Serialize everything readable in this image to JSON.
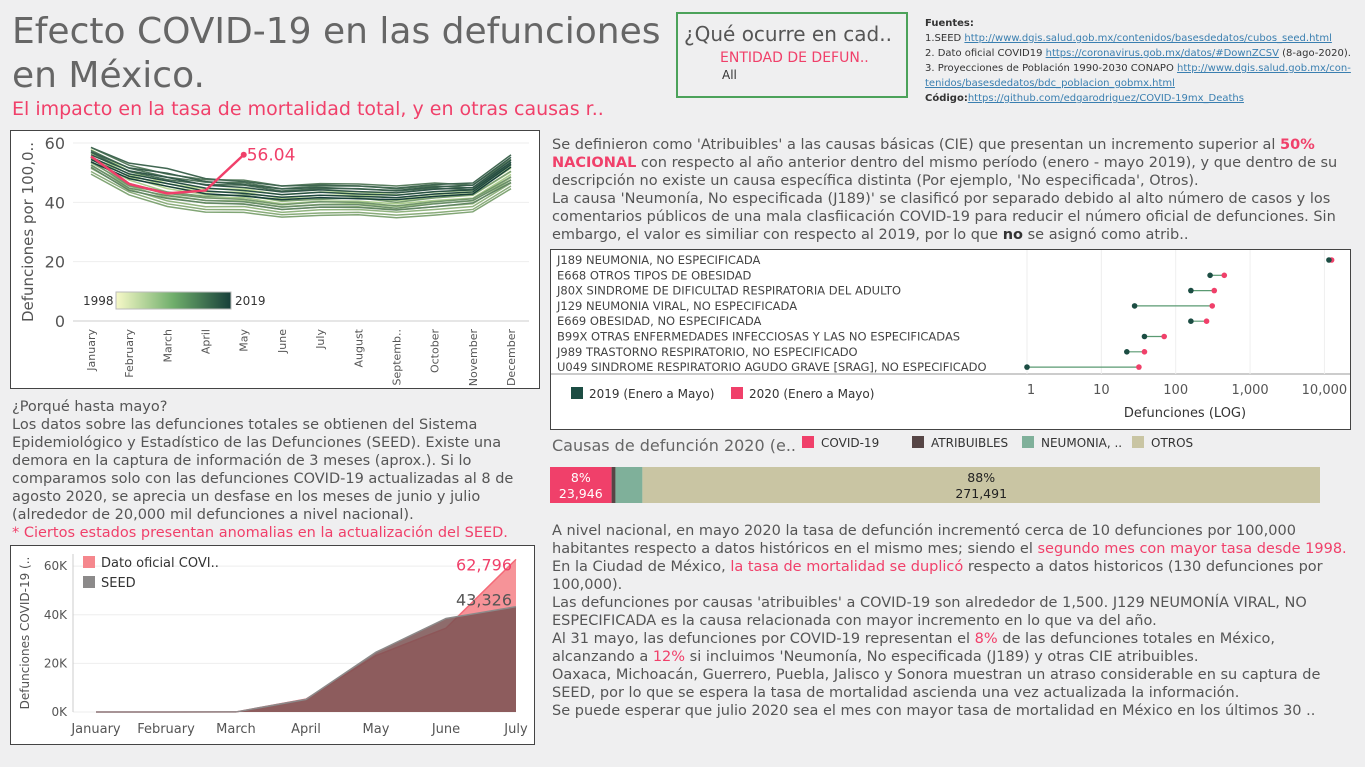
{
  "header": {
    "title": "Efecto COVID-19 en las defunciones en México.",
    "subtitle": "El impacto en la tasa de mortalidad total, y en otras causas r.."
  },
  "filter": {
    "title": "¿Qué ocurre en cad..",
    "label": "ENTIDAD DE DEFUN..",
    "value": "All"
  },
  "sources": {
    "heading": "Fuentes:",
    "s1_prefix": "1.SEED ",
    "s1_link": "http://www.dgis.salud.gob.mx/contenidos/basesdedatos/cubos_seed.html",
    "s2_prefix": "2. Dato oficial COVID19 ",
    "s2_link": "https://coronavirus.gob.mx/datos/#DownZCSV",
    "s2_suffix": " (8-ago-2020).",
    "s3_prefix": "3. Proyecciones de Población 1990-2030 CONAPO ",
    "s3_link_a": "http://www.dgis.salud.gob.mx/con-",
    "s3_link_b": "tenidos/basesdedatos/bdc_poblacion_gobmx.html",
    "code_label": "Código:",
    "code_link": "https://github.com/edgarodriguez/COVID-19mx_Deaths"
  },
  "intro": {
    "p1a": "Se definieron como 'Atribuibles' a las causas básicas (CIE) que presentan un incremento superior al ",
    "p1b": "50% NACIONAL",
    "p1c": " con respecto al año anterior dentro del mismo período (enero - mayo 2019), y que dentro de su descripción no existe un causa específica distinta (Por ejemplo, 'No especificada', Otros).",
    "p2a": "La causa 'Neumonía, No especificada (J189)' se clasificó por separado debido al alto número de casos y los comentarios públicos de una mala clasfiicación COVID-19 para reducir el número oficial de defunciones. Sin embargo, el valor es similiar con respecto al 2019, por lo que ",
    "p2b": "no",
    "p2c": " se asignó como atrib.."
  },
  "why": {
    "heading": "¿Porqué hasta mayo?",
    "body": "Los datos sobre las defunciones totales se obtienen del Sistema Epidemiológico y Estadístico de las Defunciones (SEED). Existe una demora en la captura de información de 3 meses (aprox.). Si lo comparamos solo con las defunciones COVID-19 actualizadas al 8 de agosto 2020, se aprecia un desfase en los meses de junio y julio (alrededor de 20,000 mil defunciones a nivel nacional).",
    "note": "* Ciertos estados presentan anomalias en la actualización del SEED."
  },
  "conclusions": {
    "c1a": "A nivel nacional, en mayo 2020 la tasa de defunción incrementó cerca de 10 defunciones por 100,000 habitantes respecto a datos históricos en el mismo mes; siendo el ",
    "c1b": "segundo mes con mayor tasa desde 1998.",
    "c2a": "En la Ciudad de México, ",
    "c2b": "la tasa de mortalidad se duplicó",
    "c2c": " respecto a datos historicos (130 defunciones por 100,000).",
    "c3": "Las defunciones por causas 'atribuibles' a COVID-19 son alrededor de 1,500. J129 NEUMONÍA VIRAL, NO ESPECIFICADA es la causa relacionada con mayor incremento en lo que va del año.",
    "c4a": "Al 31 mayo, las defunciones por COVID-19 representan el ",
    "c4b": "8%",
    "c4c": " de las defunciones totales en México, alcanzando  a ",
    "c4d": "12%",
    "c4e": " si incluimos 'Neumonía, No especificada (J189) y otras CIE atribuibles.",
    "c5": "Oaxaca, Michoacán, Guerrero, Puebla, Jalisco y Sonora muestran un atraso considerable en su captura de SEED, por lo que se espera la tasa de mortalidad ascienda una vez actualizada la información.",
    "c6": "Se puede esperar que julio 2020 sea el mes con mayor tasa de mortalidad en México en los últimos 30 .."
  },
  "chart_data": [
    {
      "type": "line",
      "ylabel": "Defunciones por 100,0..",
      "ylim": [
        0,
        60
      ],
      "yticks": [
        "0",
        "20",
        "40",
        "60"
      ],
      "categories": [
        "January",
        "February",
        "March",
        "April",
        "May",
        "June",
        "July",
        "August",
        "Septemb..",
        "October",
        "November",
        "December"
      ],
      "legend": {
        "min_label": "1998",
        "max_label": "2019",
        "low_color": "#f7f9c8",
        "high_color": "#173f3a"
      },
      "highlight": {
        "name": "2020",
        "color": "#f0406a",
        "values": [
          55.5,
          46.2,
          43,
          44,
          56.04
        ],
        "label": "56.04"
      },
      "historical_series": [
        [
          57.8,
          50.5,
          46.3,
          44.5,
          44.5,
          42.5,
          43.5,
          43.5,
          42.5,
          43.5,
          44,
          52.2
        ],
        [
          56.5,
          49.4,
          45.3,
          43.5,
          43.5,
          41.3,
          42.4,
          42.5,
          41.5,
          42.6,
          43.3,
          51.5
        ],
        [
          55.5,
          48.5,
          44.6,
          42.6,
          42.4,
          40.3,
          41.3,
          41.5,
          40.6,
          41.5,
          42.4,
          50.3
        ],
        [
          54.5,
          47.5,
          43.5,
          41.5,
          41.6,
          39.5,
          40.4,
          40.4,
          39.5,
          40.6,
          41.4,
          49.4
        ],
        [
          53.3,
          46.4,
          42.5,
          40.6,
          40.5,
          38.5,
          39.3,
          39.6,
          38.6,
          39.6,
          40.5,
          48.4
        ],
        [
          52.4,
          45.5,
          41.6,
          39.7,
          39.5,
          37.6,
          38.4,
          38.5,
          37.5,
          38.5,
          39.5,
          47.5
        ],
        [
          51.5,
          44.4,
          40.5,
          38.5,
          38.6,
          36.6,
          37.5,
          37.6,
          36.7,
          37.6,
          38.6,
          46.5
        ],
        [
          50.4,
          43.5,
          39.5,
          37.6,
          37.5,
          35.8,
          36.4,
          36.6,
          35.7,
          36.5,
          37.6,
          45.5
        ],
        [
          49.5,
          42.5,
          38.6,
          36.7,
          36.6,
          35,
          35.6,
          35.8,
          34.8,
          35.7,
          36.8,
          44.6
        ],
        [
          55,
          46,
          43.5,
          42,
          42.5,
          40.5,
          41,
          41.5,
          40,
          41.5,
          42.5,
          50.5
        ],
        [
          53.8,
          45.6,
          43,
          41.5,
          41,
          39.2,
          40.2,
          40,
          38.8,
          40.2,
          41.2,
          48.6
        ],
        [
          52.6,
          44.8,
          42.2,
          40.6,
          40.2,
          38.4,
          39.2,
          39.2,
          38,
          39.5,
          40.6,
          47.6
        ],
        [
          51.8,
          44,
          41.3,
          39.8,
          39.4,
          37.6,
          38.4,
          38.3,
          37.4,
          38.5,
          39.8,
          46.7
        ],
        [
          58.5,
          52.5,
          49.5,
          47.6,
          47.5,
          45.5,
          46.3,
          46.2,
          45.5,
          46.5,
          45.8,
          54.5
        ],
        [
          57.5,
          51.5,
          48.5,
          46.8,
          46.6,
          44.6,
          45.5,
          45.5,
          44.6,
          45.6,
          44.8,
          53.5
        ],
        [
          56.8,
          50.4,
          47.6,
          46,
          45.8,
          43.8,
          44.6,
          44.6,
          43.8,
          44.8,
          44.2,
          53
        ],
        [
          58.5,
          53.2,
          51.4,
          48,
          47,
          45.5,
          45.8,
          45.5,
          44.8,
          46,
          46.5,
          56
        ],
        [
          57,
          51.6,
          49.8,
          47,
          46,
          44.5,
          45,
          44.5,
          44,
          45.2,
          45.8,
          55.2
        ],
        [
          56,
          50.6,
          48.4,
          45.8,
          45,
          43.5,
          44.2,
          43.6,
          43.2,
          44.4,
          45,
          54.2
        ],
        [
          55.2,
          49.6,
          47.2,
          44.8,
          44,
          42.6,
          43.4,
          42.8,
          42.4,
          43.6,
          44.2,
          53.5
        ],
        [
          54.4,
          48.8,
          46.3,
          43.8,
          43,
          41.7,
          42.4,
          42,
          41.6,
          42.8,
          43.5,
          52.7
        ],
        [
          53.6,
          48,
          45.4,
          42.9,
          42.1,
          40.9,
          41.6,
          41.2,
          40.9,
          42,
          42.8,
          51.9
        ]
      ]
    },
    {
      "type": "scatter",
      "xscale": "log",
      "xlabel": "Defunciones (LOG)",
      "xticks": [
        "1",
        "10",
        "100",
        "1,000",
        "10,000"
      ],
      "categories": [
        "J189 NEUMONIA, NO ESPECIFICADA",
        "E668 OTROS TIPOS DE OBESIDAD",
        "J80X SINDROME DE DIFICULTAD RESPIRATORIA DEL ADULTO",
        "J129 NEUMONIA VIRAL, NO ESPECIFICADA",
        "E669 OBESIDAD, NO ESPECIFICADA",
        "B99X OTRAS ENFERMEDADES INFECCIOSAS Y LAS NO ESPECIFICADAS",
        "J989 TRASTORNO RESPIRATORIO, NO ESPECIFICADO",
        "U049 SINDROME RESPIRATORIO AGUDO GRAVE [SRAG], NO ESPECIFICADO"
      ],
      "series": [
        {
          "name": "2019 (Enero a Mayo)",
          "color": "#1c4d43",
          "values": [
            11500,
            290,
            160,
            28,
            160,
            38,
            22,
            1
          ]
        },
        {
          "name": "2020 (Enero a Mayo)",
          "color": "#f0406a",
          "values": [
            12500,
            450,
            330,
            310,
            260,
            70,
            38,
            32
          ]
        }
      ]
    },
    {
      "type": "bar",
      "title": "Causas de defunción 2020 (e..",
      "legend": [
        {
          "name": "COVID-19",
          "color": "#f0406a"
        },
        {
          "name": "ATRIBUIBLES",
          "color": "#564545"
        },
        {
          "name": "NEUMONIA, ..",
          "color": "#7fb09a"
        },
        {
          "name": "OTROS",
          "color": "#c9c5a3"
        }
      ],
      "segments": [
        {
          "name": "COVID-19",
          "share": 0.08,
          "pct": "8%",
          "count": "23,946"
        },
        {
          "name": "ATRIBUIBLES",
          "share": 0.005
        },
        {
          "name": "NEUMONIA, ..",
          "share": 0.035
        },
        {
          "name": "OTROS",
          "share": 0.88,
          "pct": "88%",
          "count": "271,491"
        }
      ],
      "total_share": 1.0
    },
    {
      "type": "area",
      "ylabel": "Defunciones COVID-19 (..",
      "ylim": [
        0,
        65000
      ],
      "yticks": [
        "0K",
        "20K",
        "40K",
        "60K"
      ],
      "categories": [
        "January",
        "February",
        "March",
        "April",
        "May",
        "June",
        "July"
      ],
      "series": [
        {
          "name": "Dato oficial COVI..",
          "color": "#f5878d",
          "values": [
            0,
            0,
            28,
            5300,
            23200,
            34500,
            62796
          ],
          "label": "62,796"
        },
        {
          "name": "SEED",
          "color": "#8c8a8a",
          "values": [
            0,
            0,
            28,
            5200,
            24600,
            38500,
            43326
          ],
          "label": "43,326"
        }
      ]
    }
  ]
}
